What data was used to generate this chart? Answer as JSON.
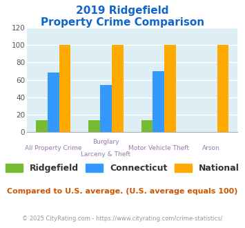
{
  "title_line1": "2019 Ridgefield",
  "title_line2": "Property Crime Comparison",
  "cat_labels_line1": [
    "All Property Crime",
    "Burglary",
    "Motor Vehicle Theft",
    "Arson"
  ],
  "cat_labels_line2": [
    "",
    "Larceny & Theft",
    "",
    ""
  ],
  "ridgefield": [
    14,
    14,
    14,
    0
  ],
  "connecticut": [
    68,
    54,
    70,
    0
  ],
  "national": [
    100,
    100,
    100,
    100
  ],
  "color_ridgefield": "#77bb33",
  "color_connecticut": "#3399ff",
  "color_national": "#ffaa00",
  "ylim": [
    0,
    120
  ],
  "yticks": [
    0,
    20,
    40,
    60,
    80,
    100,
    120
  ],
  "plot_bg": "#ddeef5",
  "title_color": "#1166cc",
  "axis_label_color": "#9977aa",
  "legend_label_color": "#333333",
  "footer_text": "Compared to U.S. average. (U.S. average equals 100)",
  "footer_color": "#cc5500",
  "copyright_text": "© 2025 CityRating.com - https://www.cityrating.com/crime-statistics/",
  "copyright_color": "#999999",
  "bar_width": 0.22
}
